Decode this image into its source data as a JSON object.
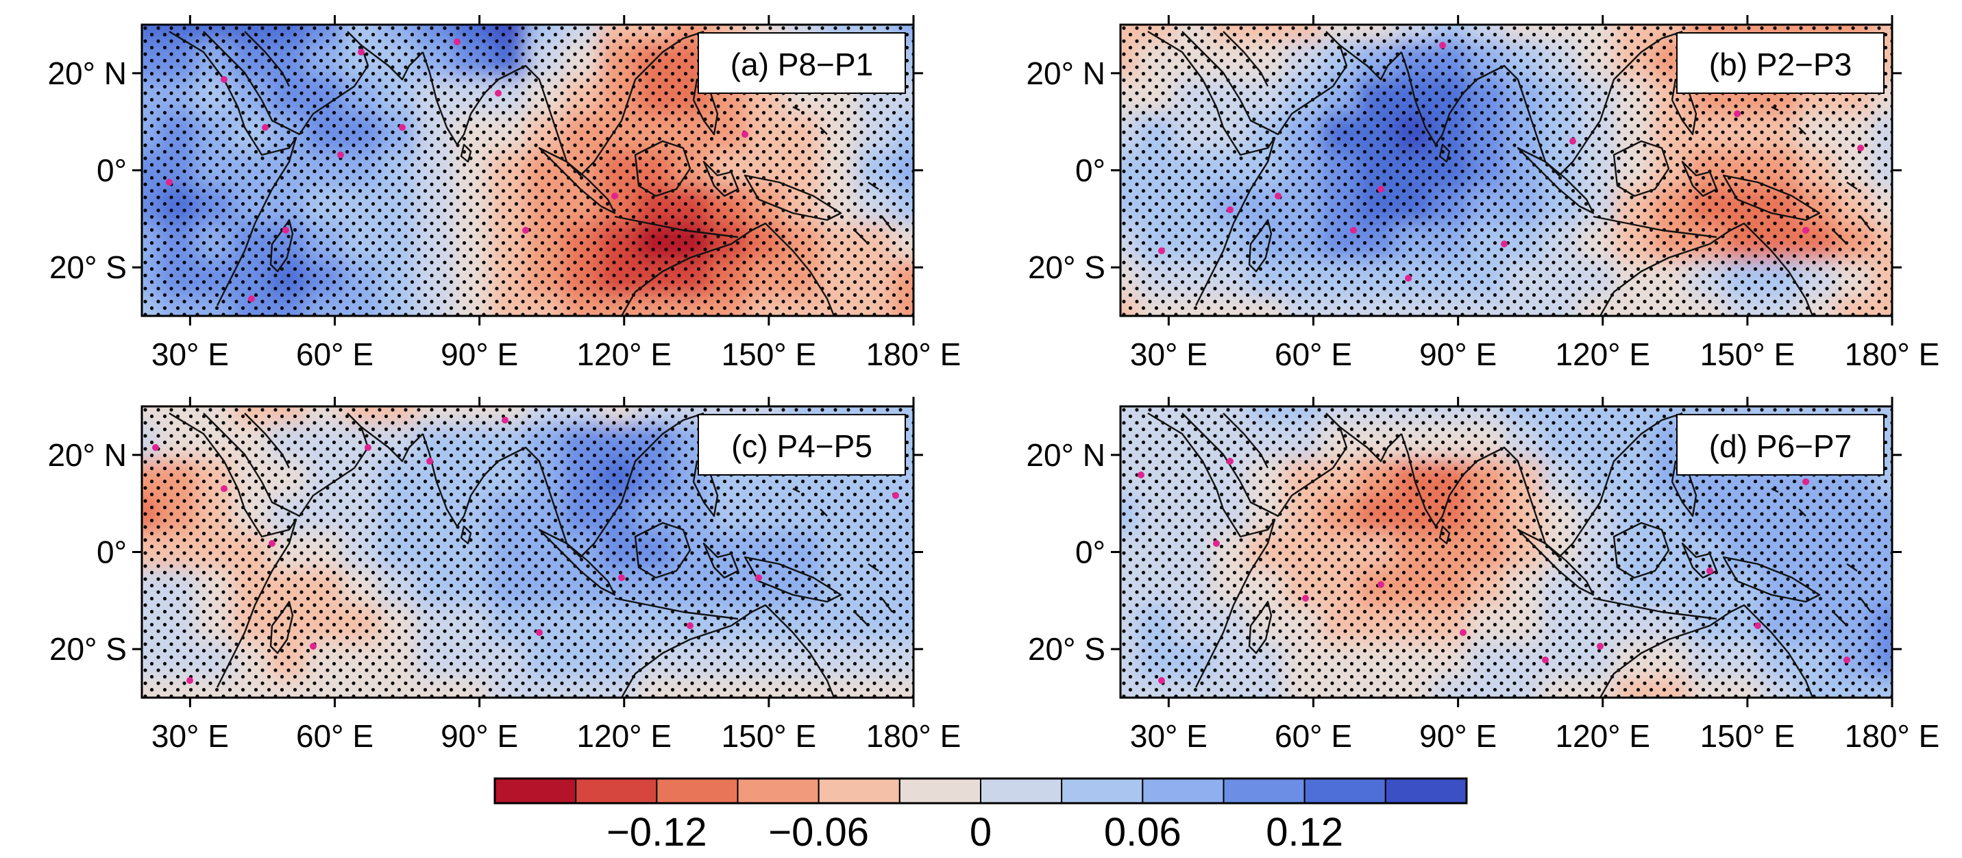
{
  "figure": {
    "panels": [
      {
        "id": "a",
        "label": "(a) P8−P1",
        "pattern": [
          [
            10,
            10,
            10,
            10,
            10,
            9,
            7,
            8,
            9,
            10,
            11,
            7,
            6,
            4,
            4,
            3,
            4,
            5,
            6,
            7,
            7,
            8
          ],
          [
            9,
            9,
            8,
            9,
            9,
            8,
            7,
            7,
            8,
            9,
            10,
            6,
            5,
            3,
            2,
            2,
            3,
            4,
            5,
            6,
            6,
            7
          ],
          [
            8,
            8,
            7,
            8,
            9,
            9,
            8,
            7,
            6,
            6,
            6,
            5,
            4,
            3,
            2,
            2,
            3,
            4,
            5,
            5,
            6,
            6
          ],
          [
            8,
            9,
            8,
            7,
            8,
            9,
            9,
            8,
            6,
            5,
            5,
            4,
            3,
            3,
            3,
            3,
            3,
            4,
            4,
            5,
            6,
            7
          ],
          [
            9,
            9,
            8,
            8,
            8,
            8,
            8,
            7,
            6,
            5,
            4,
            3,
            3,
            2,
            2,
            3,
            4,
            4,
            4,
            5,
            7,
            8
          ],
          [
            9,
            10,
            9,
            8,
            8,
            7,
            7,
            7,
            6,
            5,
            4,
            3,
            3,
            2,
            1,
            1,
            2,
            3,
            4,
            5,
            6,
            7
          ],
          [
            8,
            9,
            8,
            9,
            9,
            8,
            7,
            7,
            6,
            5,
            4,
            3,
            2,
            1,
            0,
            0,
            1,
            2,
            3,
            4,
            4,
            5
          ],
          [
            8,
            9,
            9,
            9,
            10,
            9,
            8,
            7,
            6,
            5,
            4,
            3,
            2,
            1,
            1,
            1,
            2,
            3,
            3,
            4,
            4,
            3
          ],
          [
            7,
            8,
            8,
            9,
            9,
            8,
            8,
            7,
            6,
            5,
            4,
            4,
            3,
            3,
            3,
            3,
            3,
            4,
            4,
            4,
            4,
            3
          ]
        ]
      },
      {
        "id": "b",
        "label": "(b) P2−P3",
        "pattern": [
          [
            4,
            4,
            5,
            4,
            4,
            4,
            5,
            5,
            6,
            7,
            6,
            5,
            5,
            5,
            4,
            4,
            3,
            3,
            3,
            3,
            3,
            4
          ],
          [
            4,
            5,
            5,
            5,
            5,
            6,
            7,
            8,
            9,
            9,
            8,
            7,
            6,
            5,
            4,
            3,
            3,
            3,
            3,
            4,
            4,
            4
          ],
          [
            5,
            5,
            6,
            6,
            6,
            7,
            8,
            10,
            10,
            10,
            9,
            8,
            7,
            6,
            5,
            4,
            3,
            3,
            3,
            4,
            4,
            5
          ],
          [
            6,
            7,
            6,
            6,
            7,
            8,
            10,
            10,
            11,
            10,
            9,
            8,
            7,
            6,
            5,
            4,
            4,
            4,
            4,
            5,
            5,
            6
          ],
          [
            7,
            7,
            7,
            7,
            7,
            8,
            9,
            10,
            10,
            10,
            9,
            8,
            7,
            6,
            5,
            4,
            3,
            3,
            3,
            4,
            5,
            6
          ],
          [
            7,
            7,
            7,
            8,
            8,
            8,
            9,
            10,
            10,
            9,
            8,
            8,
            7,
            6,
            4,
            3,
            2,
            2,
            2,
            3,
            4,
            5
          ],
          [
            6,
            7,
            7,
            7,
            8,
            8,
            9,
            9,
            8,
            8,
            7,
            7,
            6,
            5,
            4,
            3,
            3,
            2,
            2,
            2,
            3,
            4
          ],
          [
            5,
            6,
            6,
            6,
            7,
            7,
            7,
            7,
            7,
            7,
            7,
            6,
            6,
            6,
            5,
            5,
            6,
            7,
            7,
            6,
            5,
            4
          ],
          [
            4,
            5,
            5,
            5,
            5,
            6,
            6,
            6,
            6,
            6,
            6,
            6,
            6,
            5,
            5,
            5,
            5,
            6,
            6,
            5,
            4,
            4
          ]
        ]
      },
      {
        "id": "c",
        "label": "(c) P4−P5",
        "pattern": [
          [
            5,
            5,
            5,
            4,
            4,
            5,
            4,
            4,
            5,
            5,
            5,
            6,
            6,
            5,
            6,
            6,
            6,
            6,
            7,
            7,
            7,
            7
          ],
          [
            6,
            5,
            5,
            5,
            6,
            6,
            6,
            6,
            7,
            7,
            7,
            8,
            9,
            9,
            9,
            8,
            7,
            7,
            7,
            7,
            7,
            7
          ],
          [
            3,
            3,
            4,
            5,
            5,
            6,
            6,
            7,
            7,
            7,
            7,
            8,
            9,
            10,
            9,
            8,
            7,
            7,
            7,
            7,
            7,
            7
          ],
          [
            2,
            3,
            4,
            5,
            6,
            6,
            6,
            7,
            7,
            7,
            8,
            8,
            9,
            9,
            8,
            8,
            7,
            7,
            7,
            7,
            7,
            7
          ],
          [
            4,
            4,
            4,
            4,
            5,
            5,
            6,
            7,
            7,
            7,
            8,
            8,
            8,
            9,
            9,
            8,
            8,
            8,
            8,
            7,
            7,
            7
          ],
          [
            6,
            6,
            5,
            4,
            4,
            4,
            5,
            6,
            7,
            7,
            8,
            8,
            8,
            8,
            8,
            8,
            8,
            8,
            8,
            7,
            7,
            7
          ],
          [
            6,
            6,
            5,
            4,
            4,
            4,
            4,
            5,
            6,
            6,
            7,
            7,
            7,
            7,
            7,
            7,
            7,
            7,
            7,
            7,
            7,
            7
          ],
          [
            6,
            6,
            6,
            5,
            4,
            5,
            5,
            5,
            6,
            6,
            6,
            7,
            7,
            7,
            6,
            6,
            6,
            6,
            6,
            6,
            6,
            6
          ],
          [
            5,
            5,
            5,
            5,
            5,
            5,
            5,
            5,
            5,
            5,
            6,
            6,
            6,
            6,
            5,
            5,
            5,
            5,
            5,
            5,
            5,
            5
          ]
        ]
      },
      {
        "id": "d",
        "label": "(d) P6−P7",
        "pattern": [
          [
            6,
            6,
            6,
            6,
            7,
            7,
            6,
            6,
            6,
            6,
            6,
            7,
            7,
            7,
            7,
            7,
            7,
            7,
            7,
            7,
            7,
            7
          ],
          [
            6,
            6,
            6,
            6,
            6,
            6,
            5,
            5,
            5,
            5,
            5,
            6,
            7,
            7,
            7,
            8,
            8,
            8,
            8,
            7,
            7,
            7
          ],
          [
            6,
            6,
            6,
            6,
            5,
            4,
            4,
            3,
            2,
            2,
            3,
            4,
            6,
            7,
            7,
            8,
            8,
            8,
            8,
            8,
            8,
            7
          ],
          [
            7,
            6,
            6,
            6,
            5,
            4,
            3,
            2,
            2,
            2,
            3,
            4,
            5,
            6,
            7,
            7,
            8,
            8,
            8,
            8,
            8,
            8
          ],
          [
            6,
            6,
            6,
            5,
            4,
            4,
            4,
            4,
            3,
            3,
            3,
            4,
            5,
            6,
            7,
            7,
            7,
            8,
            8,
            8,
            8,
            8
          ],
          [
            6,
            6,
            6,
            5,
            5,
            4,
            4,
            3,
            3,
            3,
            4,
            5,
            6,
            6,
            7,
            7,
            7,
            7,
            8,
            8,
            8,
            8
          ],
          [
            6,
            7,
            6,
            6,
            5,
            5,
            4,
            4,
            4,
            4,
            5,
            5,
            6,
            6,
            6,
            6,
            7,
            7,
            8,
            8,
            8,
            9
          ],
          [
            6,
            7,
            7,
            6,
            6,
            5,
            5,
            5,
            5,
            5,
            6,
            6,
            6,
            6,
            5,
            5,
            6,
            6,
            7,
            7,
            8,
            9
          ],
          [
            6,
            6,
            6,
            6,
            6,
            5,
            5,
            5,
            5,
            6,
            6,
            6,
            5,
            5,
            4,
            4,
            5,
            5,
            6,
            7,
            7,
            7
          ]
        ]
      }
    ],
    "lat_labels": [
      "20° N",
      "0°",
      "20° S"
    ],
    "lon_labels": [
      "30° E",
      "60° E",
      "90° E",
      "120° E",
      "150° E",
      "180° E"
    ],
    "extent": {
      "lon_min": 20,
      "lon_max": 180,
      "lat_min": -30,
      "lat_max": 30
    },
    "colorbar": {
      "colors": [
        "#b5132a",
        "#d7463e",
        "#e97558",
        "#f29b7c",
        "#f4c0a8",
        "#e8dcd6",
        "#ccd6ea",
        "#aac6f0",
        "#8fafee",
        "#6c8ee5",
        "#4d6fd7",
        "#3c50c5"
      ],
      "labels": [
        "−0.12",
        "−0.06",
        "0",
        "0.06",
        "0.12"
      ]
    },
    "stipple_color": "#000000",
    "highlight_dot_color": "#e0248f"
  }
}
